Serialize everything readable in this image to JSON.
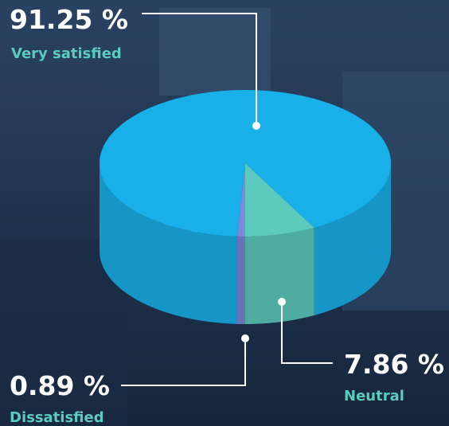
{
  "chart_data": {
    "type": "pie3d",
    "categories": [
      "Very satisfied",
      "Neutral",
      "Dissatisfied"
    ],
    "values": [
      91.25,
      7.86,
      0.89
    ],
    "value_labels": [
      "91.25 %",
      "7.86 %",
      "0.89 %"
    ],
    "colors": [
      "#19b0ea",
      "#5ccabd",
      "#7c88d8"
    ]
  }
}
